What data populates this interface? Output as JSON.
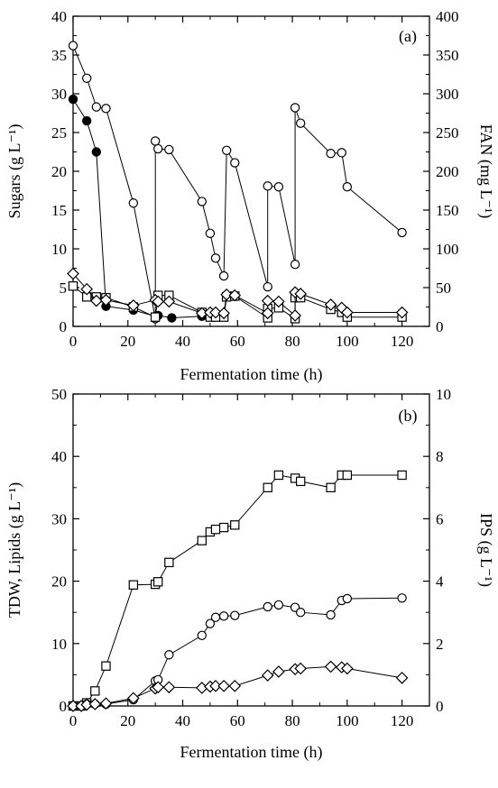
{
  "chart_data": [
    {
      "type": "line",
      "panel_label": "(a)",
      "xlabel": "Fermentation time (h)",
      "ylabel": "Sugars (g L⁻¹)",
      "ylabel_right": "FAN (mg L⁻¹)",
      "xlim": [
        0,
        130
      ],
      "ylim": [
        0,
        40
      ],
      "ylim_right": [
        0,
        400
      ],
      "xticks": [
        "0",
        "20",
        "40",
        "60",
        "80",
        "100",
        "120"
      ],
      "yticks": [
        "0",
        "5",
        "10",
        "15",
        "20",
        "25",
        "30",
        "35",
        "40"
      ],
      "yticks_right": [
        "0",
        "50",
        "100",
        "150",
        "200",
        "250",
        "300",
        "350",
        "400"
      ],
      "series": [
        {
          "marker": "circle-open",
          "axis": "left",
          "points": [
            [
              0,
              36.2
            ],
            [
              5,
              32
            ],
            [
              8.5,
              28.3
            ],
            [
              12,
              28.1
            ],
            [
              22,
              15.9
            ],
            [
              30,
              1
            ],
            [
              30,
              23.9
            ],
            [
              31,
              22.9
            ],
            [
              35,
              22.8
            ],
            [
              47,
              16.1
            ],
            [
              50,
              12
            ],
            [
              52,
              8.8
            ],
            [
              55,
              6.5
            ],
            [
              56,
              22.7
            ],
            [
              59,
              21.1
            ],
            [
              71,
              5.1
            ],
            [
              71,
              18.1
            ],
            [
              75,
              18
            ],
            [
              81,
              8
            ],
            [
              81,
              28.2
            ],
            [
              83,
              26.2
            ],
            [
              94,
              22.3
            ],
            [
              98,
              22.4
            ],
            [
              100,
              18
            ],
            [
              120,
              12.1
            ]
          ]
        },
        {
          "marker": "circle-filled",
          "axis": "left",
          "points": [
            [
              0,
              29.3
            ],
            [
              5,
              26.5
            ],
            [
              8.5,
              22.5
            ],
            [
              12,
              2.6
            ],
            [
              22,
              2.1
            ],
            [
              30,
              1.3
            ],
            [
              31,
              1.4
            ],
            [
              36,
              1.1
            ],
            [
              47,
              1.3
            ]
          ]
        },
        {
          "marker": "square-open",
          "axis": "right",
          "points": [
            [
              0,
              52
            ],
            [
              5,
              38
            ],
            [
              8.5,
              38
            ],
            [
              12,
              37
            ],
            [
              22,
              25
            ],
            [
              30,
              12
            ],
            [
              31,
              40
            ],
            [
              35,
              40
            ],
            [
              47,
              18
            ],
            [
              50,
              12
            ],
            [
              52,
              12
            ],
            [
              55,
              12
            ],
            [
              56,
              38
            ],
            [
              59,
              39
            ],
            [
              71,
              11
            ],
            [
              71,
              23
            ],
            [
              75,
              24
            ],
            [
              81,
              10
            ],
            [
              81,
              37
            ],
            [
              83,
              37
            ],
            [
              94,
              22
            ],
            [
              98,
              18
            ],
            [
              100,
              12
            ],
            [
              120,
              12
            ]
          ]
        },
        {
          "marker": "diamond-open",
          "axis": "right",
          "points": [
            [
              0,
              68
            ],
            [
              5,
              48
            ],
            [
              8.5,
              33
            ],
            [
              12,
              34
            ],
            [
              22,
              27
            ],
            [
              30,
              34
            ],
            [
              31,
              32
            ],
            [
              35,
              32
            ],
            [
              47,
              17
            ],
            [
              50,
              18
            ],
            [
              52,
              18
            ],
            [
              55,
              17
            ],
            [
              56,
              41
            ],
            [
              59,
              40
            ],
            [
              71,
              17
            ],
            [
              71,
              33
            ],
            [
              75,
              32
            ],
            [
              81,
              14
            ],
            [
              81,
              44
            ],
            [
              83,
              42
            ],
            [
              94,
              28
            ],
            [
              98,
              24
            ],
            [
              100,
              18
            ],
            [
              120,
              18
            ]
          ]
        }
      ]
    },
    {
      "type": "line",
      "panel_label": "(b)",
      "xlabel": "Fermentation time (h)",
      "ylabel": "TDW, Lipids (g L⁻¹)",
      "ylabel_right": "IPS (g L⁻¹)",
      "xlim": [
        0,
        130
      ],
      "ylim": [
        0,
        50
      ],
      "ylim_right": [
        0,
        10
      ],
      "xticks": [
        "0",
        "20",
        "40",
        "60",
        "80",
        "100",
        "120"
      ],
      "yticks": [
        "0",
        "10",
        "20",
        "30",
        "40",
        "50"
      ],
      "yticks_right": [
        "0",
        "2",
        "4",
        "6",
        "8",
        "10"
      ],
      "series": [
        {
          "marker": "square-open",
          "axis": "left",
          "points": [
            [
              0,
              0
            ],
            [
              3,
              0
            ],
            [
              5,
              0.5
            ],
            [
              8,
              2.4
            ],
            [
              12,
              6.4
            ],
            [
              22,
              19.4
            ],
            [
              30,
              19.5
            ],
            [
              31,
              19.9
            ],
            [
              35,
              23
            ],
            [
              47,
              26.5
            ],
            [
              50,
              27.9
            ],
            [
              52,
              28.3
            ],
            [
              55,
              28.6
            ],
            [
              59,
              29
            ],
            [
              71,
              35
            ],
            [
              75,
              37
            ],
            [
              81,
              36.5
            ],
            [
              83,
              36
            ],
            [
              94,
              35
            ],
            [
              98,
              37
            ],
            [
              100,
              37
            ],
            [
              120,
              37
            ]
          ]
        },
        {
          "marker": "circle-open",
          "axis": "left",
          "points": [
            [
              0,
              0
            ],
            [
              3,
              0
            ],
            [
              5,
              0.3
            ],
            [
              8,
              0.3
            ],
            [
              12,
              0.3
            ],
            [
              22,
              1
            ],
            [
              30,
              4
            ],
            [
              31,
              4.2
            ],
            [
              35,
              8.2
            ],
            [
              47,
              11.3
            ],
            [
              50,
              13.2
            ],
            [
              52,
              14.2
            ],
            [
              55,
              14.4
            ],
            [
              59,
              14.5
            ],
            [
              71,
              15.9
            ],
            [
              75,
              16.2
            ],
            [
              81,
              15.8
            ],
            [
              83,
              15
            ],
            [
              94,
              14.6
            ],
            [
              98,
              16.9
            ],
            [
              100,
              17.2
            ],
            [
              120,
              17.3
            ]
          ]
        },
        {
          "marker": "diamond-open",
          "axis": "right",
          "points": [
            [
              0,
              0
            ],
            [
              3,
              0
            ],
            [
              5,
              0.04
            ],
            [
              8,
              0.06
            ],
            [
              12,
              0.08
            ],
            [
              22,
              0.25
            ],
            [
              30,
              0.56
            ],
            [
              31,
              0.6
            ],
            [
              35,
              0.6
            ],
            [
              47,
              0.58
            ],
            [
              50,
              0.62
            ],
            [
              52,
              0.64
            ],
            [
              55,
              0.64
            ],
            [
              59,
              0.64
            ],
            [
              71,
              0.98
            ],
            [
              75,
              1.1
            ],
            [
              81,
              1.18
            ],
            [
              83,
              1.2
            ],
            [
              94,
              1.26
            ],
            [
              98,
              1.24
            ],
            [
              100,
              1.2
            ],
            [
              120,
              0.9
            ]
          ]
        }
      ]
    }
  ]
}
